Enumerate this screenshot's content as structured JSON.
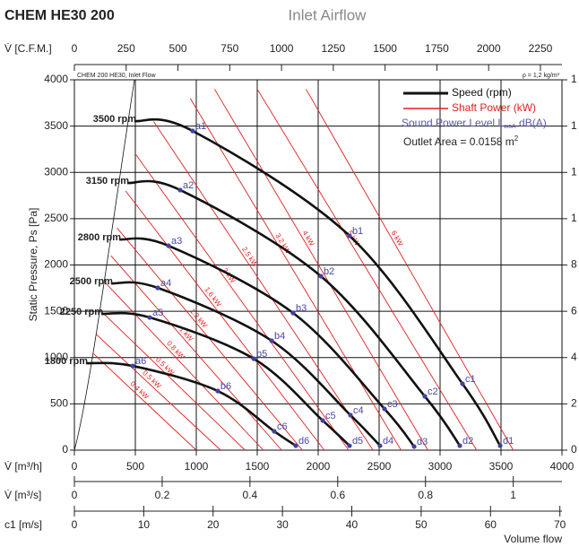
{
  "header": {
    "title": "CHEM HE30 200",
    "subtitle": "Inlet Airflow"
  },
  "chart_data": {
    "type": "line",
    "note_left": "CHEM 200 HE30, Inlet Flow",
    "note_right": "ρ = 1,2 kg/m³",
    "ylabel": "Static Pressure, Ps [Pa]",
    "xlabel": "Volume flow",
    "x_axis_label": "V̇ [m³/h]",
    "xlim": [
      0,
      4000
    ],
    "xticks": [
      0,
      500,
      1000,
      1500,
      2000,
      2500,
      3000,
      3500,
      4000
    ],
    "ylim": [
      0,
      4000
    ],
    "yticks": [
      0,
      500,
      1000,
      1500,
      2000,
      2500,
      3000,
      3500,
      4000
    ],
    "y2lim": [
      0,
      16
    ],
    "y2ticks": [
      0,
      2,
      4,
      6,
      8,
      {
        "value": 10,
        "label": "1"
      },
      {
        "value": 12,
        "label": "1"
      },
      {
        "value": 14,
        "label": "1"
      },
      {
        "value": 16,
        "label": "1"
      }
    ],
    "grid": true,
    "extra_axes": [
      {
        "label": "V̇ [C.F.M.]",
        "position": "top",
        "xlim": [
          0,
          2354
        ],
        "xticks": [
          0,
          250,
          500,
          750,
          1000,
          1250,
          1500,
          1750,
          2000,
          2250
        ]
      },
      {
        "label": "V̇ [m³/s]",
        "position": "bottom",
        "xlim": [
          0,
          1.111
        ],
        "xticks": [
          0,
          0.2,
          0.4,
          0.6,
          0.8,
          1
        ]
      },
      {
        "label": "c1 [m/s]",
        "position": "bottom",
        "xlim": [
          0,
          70.3
        ],
        "xticks": [
          0,
          10,
          20,
          30,
          40,
          50,
          60,
          70
        ]
      }
    ],
    "legend": [
      {
        "name": "Speed (rpm)",
        "color": "#111111"
      },
      {
        "name": "Shaft Power (kW)",
        "color": "#e02020"
      },
      {
        "name": [
          "Sound Power Level L",
          "woA",
          " dB(A)"
        ],
        "color": "#5a5aa8"
      }
    ],
    "outlet_area": [
      "Outlet Area = 0.0158 m",
      "2"
    ],
    "series": [
      {
        "name": "3500 rpm",
        "color": "#111111",
        "x": [
          493,
          970,
          2257,
          3184,
          3493
        ],
        "values": [
          3555,
          3448,
          2315,
          717,
          48
        ],
        "point_labels": [
          null,
          "a1",
          "b1",
          "c1",
          "d1"
        ]
      },
      {
        "name": "3150 rpm",
        "color": "#111111",
        "x": [
          434,
          868,
          2022,
          2875,
          3162
        ],
        "values": [
          2886,
          2809,
          1879,
          581,
          48
        ],
        "point_labels": [
          null,
          "a2",
          "b2",
          "c2",
          "d2"
        ]
      },
      {
        "name": "2800 rpm",
        "color": "#111111",
        "x": [
          368,
          772,
          1794,
          2544,
          2787
        ],
        "values": [
          2276,
          2208,
          1482,
          446,
          39
        ],
        "point_labels": [
          null,
          "a3",
          "b3",
          "c3",
          "d3"
        ]
      },
      {
        "name": "2500 rpm",
        "color": "#111111",
        "x": [
          301,
          684,
          1618,
          2265,
          2507
        ],
        "values": [
          1801,
          1753,
          1182,
          378,
          48
        ],
        "point_labels": [
          null,
          "a4",
          "b4",
          "c4",
          "d4"
        ]
      },
      {
        "name": "2250 rpm",
        "color": "#111111",
        "x": [
          221,
          618,
          1471,
          2037,
          2257
        ],
        "values": [
          1472,
          1433,
          988,
          320,
          48
        ],
        "point_labels": [
          null,
          "a5",
          "b5",
          "c5",
          "d5"
        ]
      },
      {
        "name": "1800 rpm",
        "color": "#111111",
        "x": [
          96,
          478,
          1176,
          1640,
          1816
        ],
        "values": [
          939,
          910,
          639,
          203,
          48
        ],
        "point_labels": [
          null,
          "a6",
          "b6",
          "c6",
          "d6"
        ]
      }
    ],
    "power_lines": [
      {
        "name": "0.4 kW",
        "color": "#e02020",
        "x": [
          150,
          1000
        ],
        "values": [
          1050,
          0
        ]
      },
      {
        "name": "0.5 kW",
        "color": "#e02020",
        "x": [
          180,
          1200
        ],
        "values": [
          1250,
          0
        ]
      },
      {
        "name": "0.5 kW",
        "color": "#e02020",
        "x": [
          220,
          1400
        ],
        "values": [
          1500,
          0
        ]
      },
      {
        "name": "0.8 kW",
        "color": "#e02020",
        "x": [
          260,
          1550
        ],
        "values": [
          1800,
          0
        ]
      },
      {
        "name": "1 kW",
        "color": "#e02020",
        "x": [
          300,
          1700
        ],
        "values": [
          2100,
          0
        ]
      },
      {
        "name": "1.2 kW",
        "color": "#e02020",
        "x": [
          350,
          1870
        ],
        "values": [
          2400,
          0
        ]
      },
      {
        "name": "1.6 kW",
        "color": "#e02020",
        "x": [
          420,
          2050
        ],
        "values": [
          2800,
          0
        ]
      },
      {
        "name": "2 kW",
        "color": "#e02020",
        "x": [
          500,
          2250
        ],
        "values": [
          3200,
          0
        ]
      },
      {
        "name": "2.5 kW",
        "color": "#e02020",
        "x": [
          650,
          2450
        ],
        "values": [
          3550,
          0
        ]
      },
      {
        "name": "3.2 kW",
        "color": "#e02020",
        "x": [
          950,
          2680
        ],
        "values": [
          3800,
          0
        ]
      },
      {
        "name": "4 kW",
        "color": "#e02020",
        "x": [
          1150,
          2900
        ],
        "values": [
          3900,
          0
        ]
      },
      {
        "name": "5 kW",
        "color": "#e02020",
        "x": [
          1500,
          3300
        ],
        "values": [
          3900,
          0
        ]
      },
      {
        "name": "6 kW",
        "color": "#e02020",
        "x": [
          1900,
          3600
        ],
        "values": [
          3900,
          0
        ]
      }
    ]
  }
}
